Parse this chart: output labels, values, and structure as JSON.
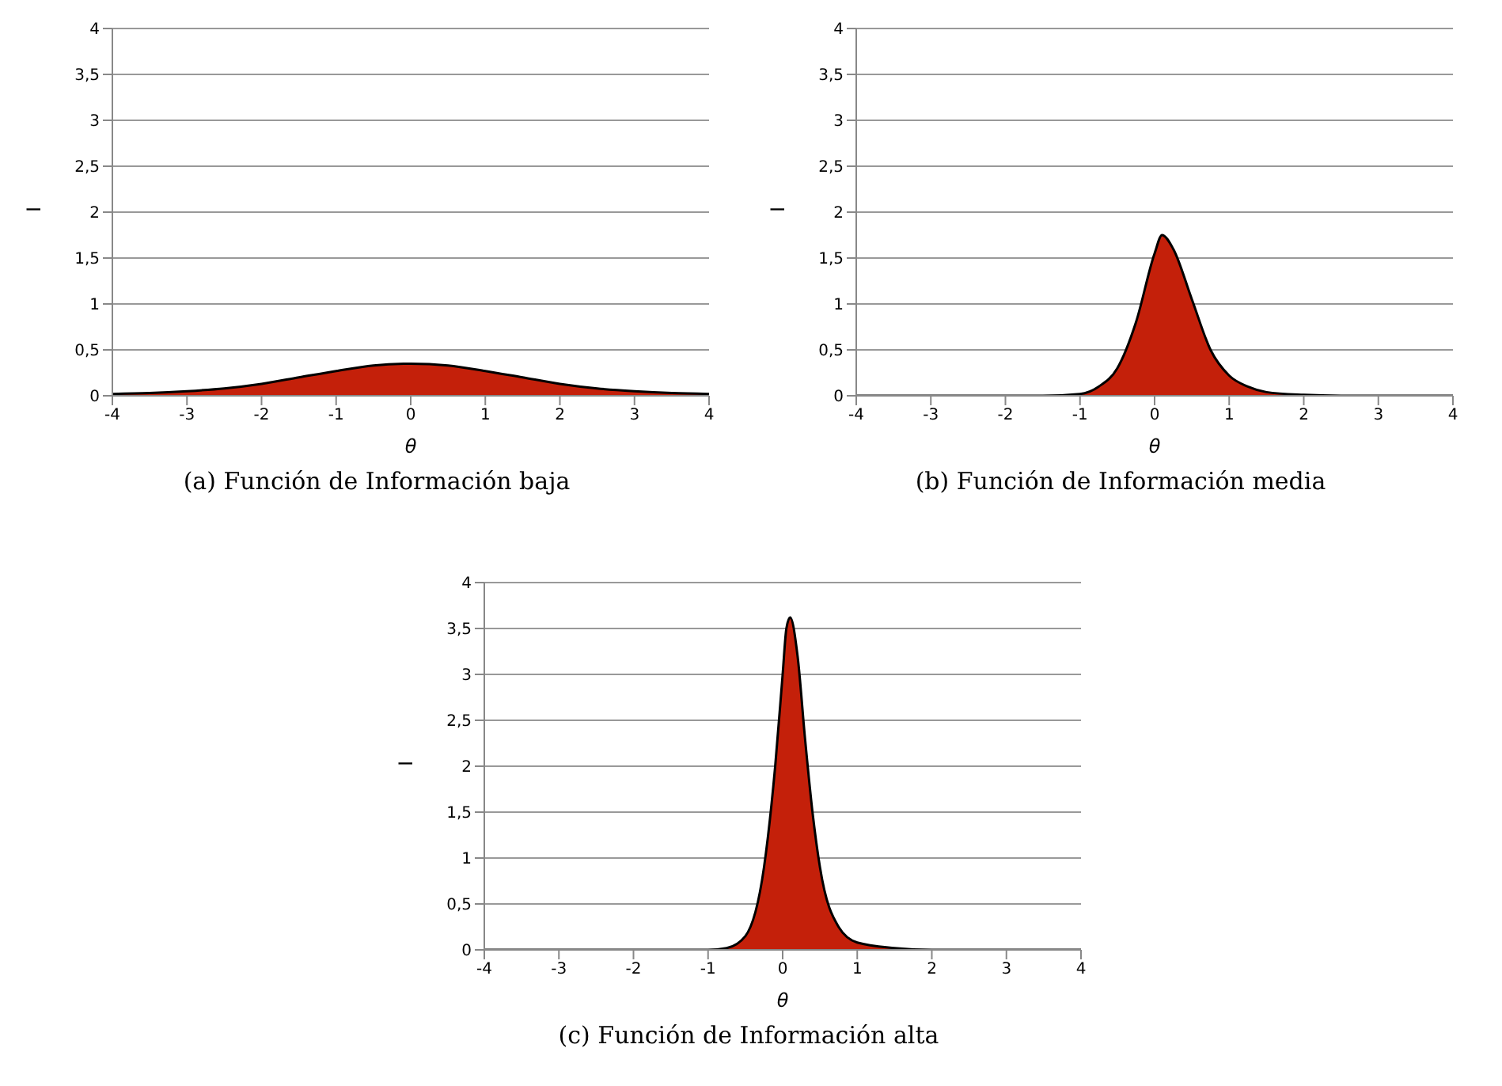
{
  "chart_data": [
    {
      "type": "area",
      "xlabel": "θ",
      "ylabel": "I",
      "annotations": [
        "(a) Función de Información baja"
      ],
      "x": [
        -4,
        -3.5,
        -3,
        -2.5,
        -2,
        -1.5,
        -1,
        -0.5,
        0,
        0.5,
        1,
        1.5,
        2,
        2.5,
        3,
        3.5,
        4
      ],
      "series": [
        {
          "color": "#000000",
          "values": [
            0.02,
            0.03,
            0.05,
            0.08,
            0.13,
            0.2,
            0.27,
            0.33,
            0.35,
            0.33,
            0.27,
            0.2,
            0.13,
            0.08,
            0.05,
            0.03,
            0.02
          ]
        }
      ],
      "xlim": [
        -4,
        4
      ],
      "xticks": [
        -4,
        -3,
        -2,
        -1,
        0,
        1,
        2,
        3,
        4
      ],
      "ylim": [
        0,
        4
      ],
      "yticks": [
        0,
        {
          "value": 0.5,
          "label": "0,5"
        },
        1,
        {
          "value": 1.5,
          "label": "1,5"
        },
        2,
        {
          "value": 2.5,
          "label": "2,5"
        },
        3,
        {
          "value": 3.5,
          "label": "3,5"
        },
        4
      ],
      "grid": "y",
      "legend": false
    },
    {
      "type": "area",
      "xlabel": "θ",
      "ylabel": "I",
      "annotations": [
        "(b) Función de Información media"
      ],
      "x": [
        -4,
        -3,
        -2,
        -1.5,
        -1,
        -0.75,
        -0.5,
        -0.25,
        0,
        0.1,
        0.25,
        0.5,
        0.75,
        1,
        1.25,
        1.5,
        2,
        2.5,
        3,
        4
      ],
      "series": [
        {
          "color": "#000000",
          "values": [
            0,
            0,
            0,
            0,
            0.02,
            0.1,
            0.3,
            0.8,
            1.55,
            1.75,
            1.6,
            1.05,
            0.5,
            0.22,
            0.1,
            0.04,
            0.01,
            0,
            0,
            0
          ]
        }
      ],
      "xlim": [
        -4,
        4
      ],
      "xticks": [
        -4,
        -3,
        -2,
        -1,
        0,
        1,
        2,
        3,
        4
      ],
      "ylim": [
        0,
        4
      ],
      "yticks": [
        0,
        {
          "value": 0.5,
          "label": "0,5"
        },
        1,
        {
          "value": 1.5,
          "label": "1,5"
        },
        2,
        {
          "value": 2.5,
          "label": "2,5"
        },
        3,
        {
          "value": 3.5,
          "label": "3,5"
        },
        4
      ],
      "grid": "y",
      "legend": false
    },
    {
      "type": "area",
      "xlabel": "θ",
      "ylabel": "I",
      "annotations": [
        "(c) Función de Información alta"
      ],
      "x": [
        -4,
        -3,
        -2,
        -1,
        -0.75,
        -0.5,
        -0.25,
        -0.1,
        0,
        0.05,
        0.1,
        0.2,
        0.3,
        0.4,
        0.5,
        0.75,
        1,
        1.5,
        2,
        3,
        4
      ],
      "series": [
        {
          "color": "#000000",
          "values": [
            0,
            0,
            0,
            0,
            0.02,
            0.15,
            0.9,
            2.0,
            3.0,
            3.5,
            3.62,
            3.2,
            2.3,
            1.5,
            0.9,
            0.25,
            0.08,
            0.02,
            0,
            0,
            0
          ]
        }
      ],
      "xlim": [
        -4,
        4
      ],
      "xticks": [
        -4,
        -3,
        -2,
        -1,
        0,
        1,
        2,
        3,
        4
      ],
      "ylim": [
        0,
        4
      ],
      "yticks": [
        0,
        {
          "value": 0.5,
          "label": "0,5"
        },
        1,
        {
          "value": 1.5,
          "label": "1,5"
        },
        2,
        {
          "value": 2.5,
          "label": "2,5"
        },
        3,
        {
          "value": 3.5,
          "label": "3,5"
        },
        4
      ],
      "grid": "y",
      "legend": false
    }
  ]
}
